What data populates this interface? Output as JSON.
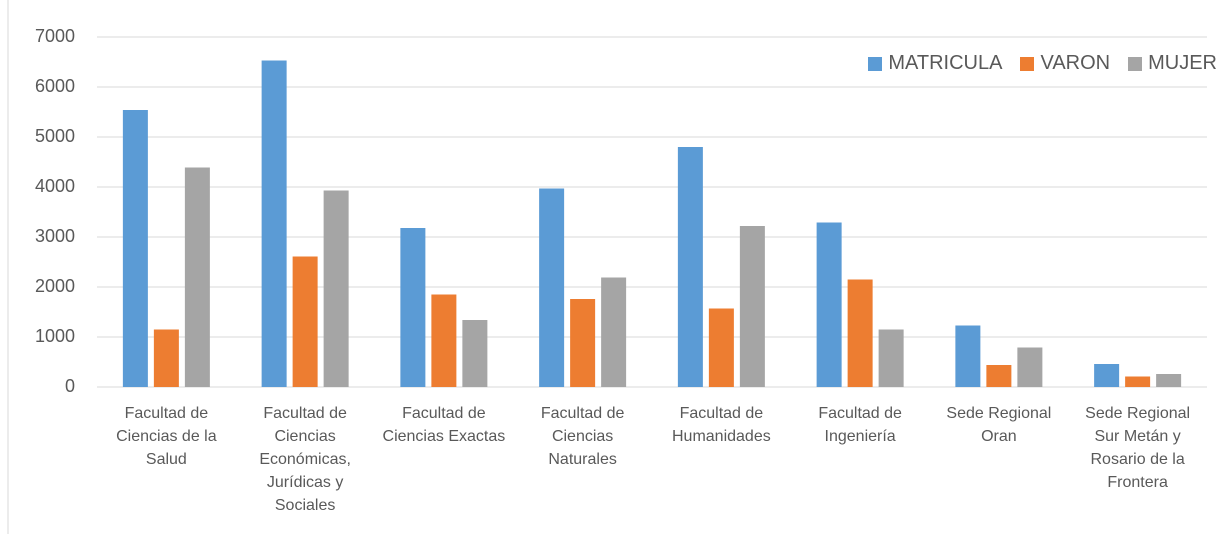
{
  "chart_data": {
    "type": "bar",
    "categories": [
      "Facultad de Ciencias de la Salud",
      "Facultad de Ciencias Económicas, Jurídicas y Sociales",
      "Facultad de Ciencias Exactas",
      "Facultad de Ciencias Naturales",
      "Facultad de Humanidades",
      "Facultad de Ingeniería",
      "Sede Regional Oran",
      "Sede Regional Sur Metán y Rosario de la Frontera"
    ],
    "series": [
      {
        "name": "MATRICULA",
        "color": "#5b9bd5",
        "values": [
          5540,
          6530,
          3180,
          3970,
          4800,
          3290,
          1230,
          460
        ]
      },
      {
        "name": "VARON",
        "color": "#ed7d31",
        "values": [
          1150,
          2610,
          1850,
          1760,
          1570,
          2150,
          440,
          210
        ]
      },
      {
        "name": "MUJER",
        "color": "#a5a5a5",
        "values": [
          4390,
          3930,
          1340,
          2190,
          3220,
          1150,
          790,
          260
        ]
      }
    ],
    "ylim": [
      0,
      7000
    ],
    "yticks": [
      0,
      1000,
      2000,
      3000,
      4000,
      5000,
      6000,
      7000
    ],
    "grid": true,
    "legend": "top-right"
  }
}
